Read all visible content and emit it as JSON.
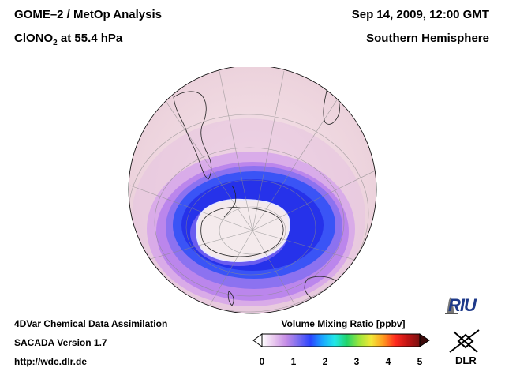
{
  "header": {
    "title": "GOME–2 / MetOp Analysis",
    "species": "ClONO",
    "species_sub": "2",
    "species_level": " at 55.4 hPa",
    "date": "Sep 14, 2009, 12:00 GMT",
    "hemisphere": "Southern Hemisphere"
  },
  "footer": {
    "line1": "4DVar Chemical Data Assimilation",
    "line2": "SACADA Version 1.7",
    "line3": "http://wdc.dlr.de"
  },
  "colorbar": {
    "title": "Volume Mixing Ratio [ppbv]",
    "ticks": [
      "0",
      "1",
      "2",
      "3",
      "4",
      "5"
    ],
    "range": [
      0,
      5
    ],
    "colors": [
      "#ffffff",
      "#e8c6ee",
      "#c58ce6",
      "#7a6cf0",
      "#2a44ff",
      "#1aa8ff",
      "#22e8e8",
      "#22d46a",
      "#9be63c",
      "#f2e838",
      "#ff9a1e",
      "#ff2a1e",
      "#c01414",
      "#7a1010"
    ]
  },
  "logos": {
    "riu_text": "RIU",
    "dlr_text": "DLR"
  },
  "map": {
    "projection": "orthographic, south polar",
    "field_colors": {
      "background": "#f2dde3",
      "light_purple": "#d9a8e8",
      "purple": "#b47ae6",
      "violet": "#8a6ef0",
      "blue": "#3a52f4",
      "deep_blue": "#2430e8",
      "core_white": "#f4eaec"
    }
  }
}
